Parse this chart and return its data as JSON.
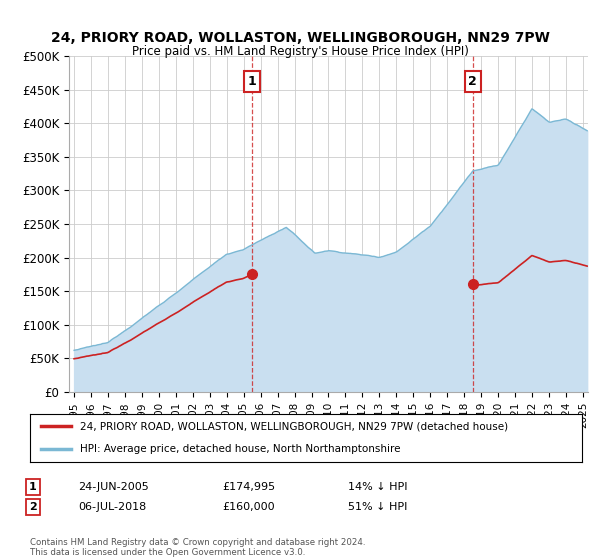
{
  "title1": "24, PRIORY ROAD, WOLLASTON, WELLINGBOROUGH, NN29 7PW",
  "title2": "Price paid vs. HM Land Registry's House Price Index (HPI)",
  "ylabel_ticks": [
    "£0",
    "£50K",
    "£100K",
    "£150K",
    "£200K",
    "£250K",
    "£300K",
    "£350K",
    "£400K",
    "£450K",
    "£500K"
  ],
  "ytick_values": [
    0,
    50000,
    100000,
    150000,
    200000,
    250000,
    300000,
    350000,
    400000,
    450000,
    500000
  ],
  "xlim_start": 1994.7,
  "xlim_end": 2025.3,
  "ylim": [
    0,
    500000
  ],
  "purchase1_x": 2005.48,
  "purchase1_y": 174995,
  "purchase2_x": 2018.51,
  "purchase2_y": 160000,
  "purchase1_date": "24-JUN-2005",
  "purchase1_price": "£174,995",
  "purchase1_hpi": "14% ↓ HPI",
  "purchase2_date": "06-JUL-2018",
  "purchase2_price": "£160,000",
  "purchase2_hpi": "51% ↓ HPI",
  "legend_line1": "24, PRIORY ROAD, WOLLASTON, WELLINGBOROUGH, NN29 7PW (detached house)",
  "legend_line2": "HPI: Average price, detached house, North Northamptonshire",
  "footer": "Contains HM Land Registry data © Crown copyright and database right 2024.\nThis data is licensed under the Open Government Licence v3.0.",
  "hpi_color": "#7bb8d4",
  "hpi_fill_color": "#c9dff0",
  "price_color": "#cc2222",
  "dashed_color": "#cc2222",
  "background_color": "#ffffff",
  "grid_color": "#cccccc"
}
